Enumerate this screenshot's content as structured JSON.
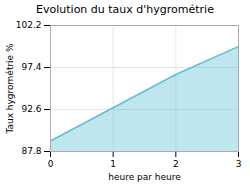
{
  "chart_data": {
    "type": "area",
    "title": "Evolution du taux d'hygrométrie",
    "xlabel": "heure par heure",
    "ylabel": "Taux hygrométrie %",
    "x": [
      0,
      1,
      2,
      3
    ],
    "values": [
      89.0,
      92.8,
      96.6,
      99.8
    ],
    "xlim": [
      0,
      3
    ],
    "xticks": [
      0,
      1,
      2,
      3
    ],
    "ylim": [
      87.8,
      102.2
    ],
    "yticks": [
      87.8,
      92.6,
      97.4,
      102.2
    ],
    "grid": true,
    "color": "#60c0d8"
  }
}
